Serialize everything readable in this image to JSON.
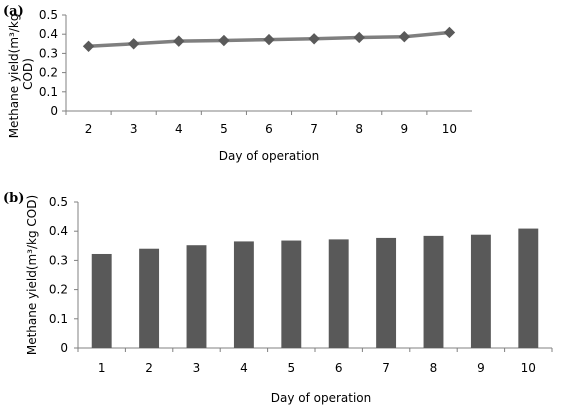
{
  "chart_data": [
    {
      "panel_label": "(a)",
      "type": "line",
      "x": [
        2,
        3,
        4,
        5,
        6,
        7,
        8,
        9,
        10
      ],
      "series": [
        {
          "values": [
            0.337,
            0.35,
            0.364,
            0.367,
            0.372,
            0.376,
            0.383,
            0.387,
            0.409
          ]
        }
      ],
      "xlabel": "Day of operation",
      "ylabel": "Methane yield(m³/kg COD)",
      "ylim": [
        0,
        0.5
      ],
      "yticks": [
        "0",
        "0.1",
        "0.2",
        "0.3",
        "0.4",
        "0.5"
      ],
      "xticks": [
        "2",
        "3",
        "4",
        "5",
        "6",
        "7",
        "8",
        "9",
        "10"
      ],
      "grid": false,
      "marker": "diamond",
      "line_color": "#7f7f7f",
      "marker_color": "#5a5a5a"
    },
    {
      "panel_label": "(b)",
      "type": "bar",
      "categories": [
        "1",
        "2",
        "3",
        "4",
        "5",
        "6",
        "7",
        "8",
        "9",
        "10"
      ],
      "values": [
        0.322,
        0.34,
        0.352,
        0.365,
        0.368,
        0.372,
        0.377,
        0.384,
        0.388,
        0.409
      ],
      "xlabel": "Day of operation",
      "ylabel": "Methane yield(m³/kg COD)",
      "ylim": [
        0,
        0.5
      ],
      "yticks": [
        "0",
        "0.1",
        "0.2",
        "0.3",
        "0.4",
        "0.5"
      ],
      "grid": false,
      "bar_color": "#595959"
    }
  ]
}
